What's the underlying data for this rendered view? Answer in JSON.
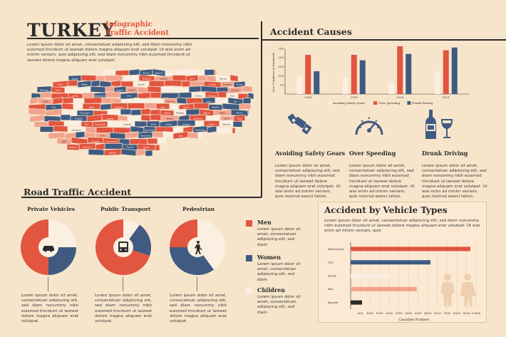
{
  "header": {
    "title": "TURKEY",
    "subtitle_line1": "Infographic",
    "subtitle_line2": "Traffic Accident"
  },
  "intro_text": "Lorem ipsum dolor sit amet, consectetuer adipiscing elit, sed diam nonummy nibh euismod tincidunt ut laoreet dolore magna aliquam erat volutpat. Ut wisi enim ad minim veniam, quis adipiscing elit, sed diam nonummy nibh euismod tincidunt ut laoreet dolore magna aliquam erat volutpat.",
  "map": {
    "provinces": [
      "Edirne",
      "Istanbul",
      "Bursa",
      "Balikesir",
      "Kocaeli",
      "Izmir",
      "Manisa",
      "Aydin",
      "Mugla",
      "Denizli",
      "Ankara",
      "Eskisehir",
      "Konya",
      "Karaman",
      "Sivas",
      "Kayseri",
      "Cankiri",
      "Samsun",
      "Sinop",
      "Kastamonu",
      "Ordu",
      "Giresun",
      "Trabzon",
      "Rize",
      "Artvin",
      "Erzurum",
      "Kars",
      "Van",
      "Mus",
      "Bitlis",
      "Batman",
      "Siirt",
      "Sirnak",
      "Mardin",
      "Diyarbakir",
      "Elazig",
      "Malatya",
      "Adana",
      "Hatay",
      "Mersin",
      "Antalya",
      "Isparta",
      "Burdur",
      "Kutahya",
      "Afyon",
      "Usak",
      "Bolu",
      "Zonguldak",
      "Amasya",
      "Tokat",
      "Yozgat",
      "Kirsehir",
      "Nigde",
      "Aksaray",
      "Adiyaman",
      "Sanliurfa",
      "Gaziantep",
      "Kilis",
      "Osmaniye",
      "Agri",
      "Igdir",
      "Ardahan",
      "Gumushane",
      "Bayburt",
      "Erzincan",
      "Tunceli",
      "Bingol",
      "Hakkari"
    ]
  },
  "causes": {
    "title": "Accident Causes",
    "items": [
      {
        "label": "Avoiding Safety Gears",
        "icon": "seatbelt-icon",
        "text": "Lorem ipsum dolor sit amet, consectetuer adipiscing elit, sed diam nonummy nibh euismod tincidunt ut laoreet dolore magna aliquam erat volutpat. Ut wisi enim ad minim veniam, quis nostrud exerci tation."
      },
      {
        "label": "Over Speeding",
        "icon": "speedometer-icon",
        "text": "Lorem ipsum dolor sit amet, consectetuer adipiscing elit, sed diam nonummy nibh euismod tincidunt ut laoreet dolore magna aliquam erat volutpat. Ut wisi enim ad minim veniam, quis nostrud exerci tation."
      },
      {
        "label": "Drunk Driving",
        "icon": "wine-bottle-glass-icon",
        "text": "Lorem ipsum dolor sit amet, consectetuer adipiscing elit, sed diam nonummy nibh euismod tincidunt ut laoreet dolore magna aliquam erat volutpat. Ut wisi enim ad minim veniam, quis nostrud exerci tation."
      }
    ]
  },
  "road": {
    "title": "Road Traffic Accident",
    "groups": [
      {
        "label": "Private Vehicles",
        "icon": "car-icon",
        "text": "Lorem ipsum dolor sit amet, consectetuer adipiscing elit, sed diam nonummy nibh euismod tincidunt ut laoreet dolore magna aliquam erat volutpat."
      },
      {
        "label": "Public Transport",
        "icon": "bus-icon",
        "text": "Lorem ipsum dolor sit amet, consectetuer adipiscing elit, sed diam nonummy nibh euismod tincidunt ut laoreet dolore magna aliquam erat volutpat."
      },
      {
        "label": "Pedestrian",
        "icon": "walking-person-icon",
        "text": "Lorem ipsum dolor sit amet, consectetuer adipiscing elit, sed diam nonummy nibh euismod tincidunt ut laoreet dolore magna aliquam erat volutpat."
      }
    ],
    "legend": [
      {
        "label": "Men",
        "color": "#e2553f",
        "text": "Lorem ipsum dolor sit amet, consectetuer adipiscing elit, sed diam"
      },
      {
        "label": "Women",
        "color": "#3f5b82",
        "text": "Lorem ipsum dolor sit amet, consectetuer adipiscing elit, sed diam"
      },
      {
        "label": "Children",
        "color": "#fbefe2",
        "text": "Lorem ipsum dolor sit amet, consectetuer adipiscing elit, sed diam"
      }
    ]
  },
  "vehicle": {
    "title": "Accident by Vehicle Types",
    "text": "Lorem ipsum dolor sit amet, consectetuer adipiscing elit, sed diam nonummy nibh euismod tincidunt ut laoreet dolore magna aliquam erat volutpat. Ut wisi enim ad minim veniam, quis"
  },
  "chart_data": [
    {
      "type": "bar",
      "ylabel": "Case Numbers in Hundreds",
      "categories": [
        "2018",
        "2019",
        "2020",
        "2021"
      ],
      "ylim": [
        0,
        250
      ],
      "yticks": [
        50,
        100,
        150,
        200,
        250
      ],
      "series": [
        {
          "name": "Avoiding Safety Gears",
          "color": "#fbefe2",
          "values": [
            95,
            90,
            65,
            125
          ]
        },
        {
          "name": "Over Speeding",
          "color": "#e2553f",
          "values": [
            215,
            215,
            262,
            240
          ]
        },
        {
          "name": "Drunk Driving",
          "color": "#3f5b82",
          "values": [
            125,
            185,
            220,
            255
          ]
        }
      ],
      "legend": "bottom"
    },
    {
      "type": "bar",
      "orientation": "horizontal",
      "xlabel": "Casualties Numbers",
      "categories": [
        "Motorcycle",
        "Car",
        "Truck",
        "Bus",
        "Bicycle"
      ],
      "values": [
        10500,
        7000,
        3500,
        5800,
        1000
      ],
      "colors": [
        "#e2553f",
        "#3f5b82",
        "#fbefe2",
        "#f2a38d",
        "#2b2b2b"
      ],
      "xticks": [
        500,
        1000,
        1500,
        2000,
        2500,
        3000,
        3500,
        4000,
        5500,
        7000,
        8500,
        9500,
        11000
      ]
    },
    {
      "type": "pie",
      "title": "Private Vehicles",
      "labels": [
        "Men",
        "Women",
        "Children"
      ],
      "values": [
        50,
        25,
        25
      ],
      "colors": [
        "#e2553f",
        "#3f5b82",
        "#fbefe2"
      ]
    },
    {
      "type": "pie",
      "title": "Public Transport",
      "labels": [
        "Men",
        "Women",
        "Children"
      ],
      "values": [
        70,
        20,
        10
      ],
      "colors": [
        "#e2553f",
        "#3f5b82",
        "#fbefe2"
      ]
    },
    {
      "type": "pie",
      "title": "Pedestrian",
      "labels": [
        "Men",
        "Women",
        "Children"
      ],
      "values": [
        25,
        35,
        40
      ],
      "colors": [
        "#e2553f",
        "#3f5b82",
        "#fbefe2"
      ]
    }
  ]
}
